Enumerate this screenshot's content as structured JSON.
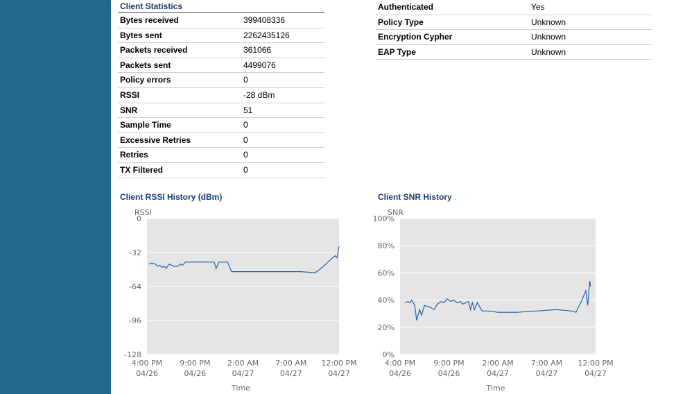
{
  "client_statistics": {
    "title": "Client Statistics",
    "rows": [
      {
        "label": "Bytes received",
        "value": "399408336"
      },
      {
        "label": "Bytes sent",
        "value": "2262435126"
      },
      {
        "label": "Packets received",
        "value": "361066"
      },
      {
        "label": "Packets sent",
        "value": "4499076"
      },
      {
        "label": "Policy errors",
        "value": "0"
      },
      {
        "label": "RSSI",
        "value": "-28 dBm"
      },
      {
        "label": "SNR",
        "value": "51"
      },
      {
        "label": "Sample Time",
        "value": "0"
      },
      {
        "label": "Excessive Retries",
        "value": "0"
      },
      {
        "label": "Retries",
        "value": "0"
      },
      {
        "label": "TX Filtered",
        "value": "0"
      }
    ]
  },
  "security": {
    "rows": [
      {
        "label": "Authenticated",
        "value": "Yes"
      },
      {
        "label": "Policy Type",
        "value": "Unknown"
      },
      {
        "label": "Encryption Cypher",
        "value": "Unknown"
      },
      {
        "label": "EAP Type",
        "value": "Unknown"
      }
    ]
  },
  "colors": {
    "sidebar": "#236a8a",
    "title": "#1a3f6e",
    "plot_bg": "#e5e5e5",
    "line": "#1f5fa8"
  },
  "chart_data": [
    {
      "type": "line",
      "title": "Client RSSI History (dBm)",
      "ylabel": "RSSI",
      "xlabel": "Time",
      "ylim": [
        -128,
        0
      ],
      "yticks": [
        "0",
        "-32",
        "-64",
        "-96",
        "-128"
      ],
      "xticks": [
        [
          "4:00 PM",
          "04/26"
        ],
        [
          "9:00 PM",
          "04/26"
        ],
        [
          "2:00 AM",
          "04/27"
        ],
        [
          "7:00 AM",
          "04/27"
        ],
        [
          "12:00 PM",
          "04/27"
        ]
      ],
      "xlim_hours": [
        0,
        20
      ],
      "grid": true,
      "series": [
        {
          "x": [
            0.2,
            0.5,
            0.9,
            1.1,
            1.3,
            1.6,
            1.8,
            2.0,
            2.3,
            2.8,
            3.2,
            3.5,
            3.7,
            4.0,
            4.5,
            5.2,
            6.0,
            6.5,
            6.9,
            7.0,
            7.2,
            7.5,
            8.0,
            8.4,
            8.8,
            10.0,
            12.0,
            14.0,
            16.0,
            17.5,
            18.0,
            18.5,
            19.2,
            19.6,
            19.8,
            20.0
          ],
          "y": [
            -43,
            -42,
            -43,
            -45,
            -44,
            -46,
            -45,
            -47,
            -43,
            -45,
            -45,
            -43,
            -44,
            -41,
            -41,
            -41,
            -41,
            -41,
            -41,
            -41,
            -47,
            -41,
            -41,
            -41,
            -50,
            -50,
            -50,
            -50,
            -50,
            -51,
            -48,
            -44,
            -38,
            -35,
            -37,
            -26
          ]
        }
      ]
    },
    {
      "type": "line",
      "title": "Client SNR History",
      "ylabel": "SNR",
      "xlabel": "Time",
      "ylim": [
        0,
        100
      ],
      "yticks": [
        "100%",
        "80%",
        "60%",
        "40%",
        "20%",
        "0%"
      ],
      "xticks": [
        [
          "4:00 PM",
          "04/26"
        ],
        [
          "9:00 PM",
          "04/26"
        ],
        [
          "2:00 AM",
          "04/27"
        ],
        [
          "7:00 AM",
          "04/27"
        ],
        [
          "12:00 PM",
          "04/27"
        ]
      ],
      "xlim_hours": [
        0,
        20
      ],
      "grid": true,
      "series": [
        {
          "x": [
            0.5,
            0.8,
            1.0,
            1.2,
            1.5,
            1.7,
            2.0,
            2.2,
            2.5,
            3.0,
            3.5,
            3.8,
            4.2,
            4.5,
            4.8,
            5.2,
            5.5,
            5.8,
            6.2,
            6.4,
            6.7,
            7.0,
            7.2,
            7.4,
            7.6,
            7.9,
            8.4,
            9.0,
            10.0,
            12.0,
            14.0,
            16.0,
            17.5,
            18.0,
            18.6,
            19.0,
            19.2,
            19.4,
            19.5
          ],
          "y": [
            38,
            39,
            38,
            40,
            36,
            25,
            33,
            29,
            36,
            35,
            33,
            37,
            39,
            38,
            41,
            39,
            40,
            38,
            39,
            37,
            38,
            39,
            33,
            38,
            33,
            38,
            32,
            32,
            31,
            31,
            32,
            33,
            32,
            31,
            40,
            47,
            36,
            54,
            50
          ]
        }
      ]
    }
  ]
}
